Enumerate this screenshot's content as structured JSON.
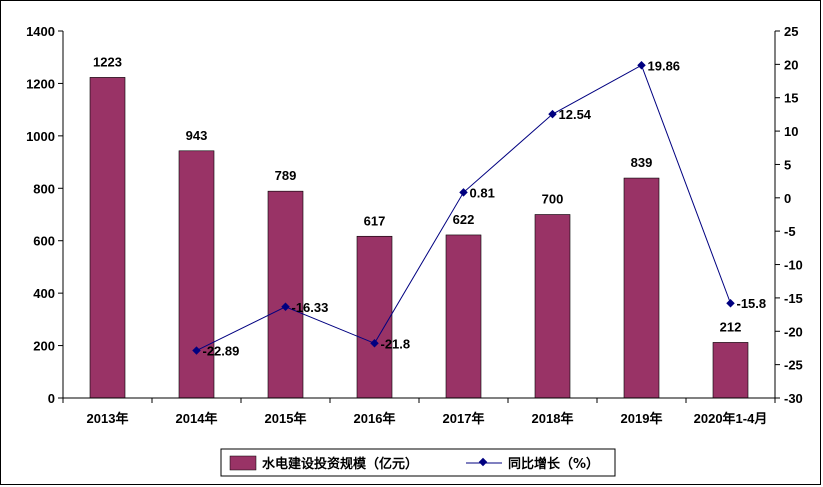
{
  "chart_data": {
    "type": "bar+line",
    "categories": [
      "2013年",
      "2014年",
      "2015年",
      "2016年",
      "2017年",
      "2018年",
      "2019年",
      "2020年1-4月"
    ],
    "series": [
      {
        "name": "水电建设投资规模（亿元）",
        "type": "bar",
        "axis": "left",
        "color": "#993366",
        "values": [
          1223,
          943,
          789,
          617,
          622,
          700,
          839,
          212
        ]
      },
      {
        "name": "同比增长（%）",
        "type": "line",
        "axis": "right",
        "color": "#000080",
        "values": [
          null,
          -22.89,
          -16.33,
          -21.8,
          0.81,
          12.54,
          19.86,
          -15.8
        ]
      }
    ],
    "y_left": {
      "min": 0,
      "max": 1400,
      "ticks": [
        0,
        200,
        400,
        600,
        800,
        1000,
        1200,
        1400
      ]
    },
    "y_right": {
      "min": -30,
      "max": 25,
      "ticks": [
        25,
        20,
        15,
        10,
        5,
        0,
        -5,
        -10,
        -15,
        -20,
        -25,
        -30
      ]
    },
    "grid": false,
    "legend_position": "bottom-center"
  }
}
